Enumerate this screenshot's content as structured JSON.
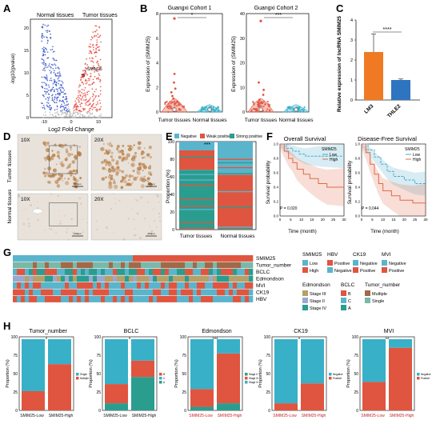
{
  "colors": {
    "up": "#e8453c",
    "down": "#3b57c9",
    "ns": "#b8b8b8",
    "tumor": "#e0553f",
    "normal": "#37b0c8",
    "orange": "#f07a23",
    "blue": "#2f74c0",
    "neg": "#5ab4cc",
    "weak": "#e0553f",
    "strong": "#2a9d8f",
    "low": "#5ab4cc",
    "high": "#e0553f",
    "posA": "#e0553f",
    "negA": "#5ab4cc",
    "s3": "#b5a06a",
    "s2": "#9aa9cc",
    "s4": "#2a9d8f",
    "bB": "#e0553f",
    "bC": "#5ab4cc",
    "bA": "#2a9d8f",
    "multi": "#a06a4a",
    "single": "#7ab8a8",
    "km_low": "#4aa8c8",
    "km_high": "#e06a4a",
    "ihc_bg": "#e8e2da",
    "ihc_stain": "#b5763a"
  },
  "panels": {
    "A": {
      "letter": "A",
      "left_label": "Normal tissues",
      "right_label": "Tumor tissues",
      "xlabel": "Log2 Fold Change",
      "ylabel": "-log10(pvalue)",
      "gene": "SMIM25",
      "xticks": [
        "-10",
        "0",
        "10"
      ],
      "yticks": [
        "0",
        "5",
        "10",
        "15",
        "20"
      ],
      "chart_data": {
        "type": "scatter",
        "title": "",
        "xlabel": "Log2 Fold Change",
        "ylabel": "-log10(pvalue)",
        "xlim": [
          -15,
          15
        ],
        "ylim": [
          0,
          22
        ],
        "groups": [
          "Normal tissues (down)",
          "Tumor tissues (up)",
          "not significant"
        ],
        "highlight": {
          "label": "SMIM25",
          "x": 4.5,
          "y": 9.5
        }
      }
    },
    "B": {
      "letter": "B",
      "cohort1": {
        "title": "Guangxi Cohort 1",
        "ylabel": "Expression of (SMIM25)",
        "sig": "*",
        "yticks": [
          "0",
          "2",
          "4",
          "6",
          "8"
        ],
        "groups": [
          "Tumor tissues",
          "Normal tissues"
        ]
      },
      "cohort2": {
        "title": "Guangxi Cohort 2",
        "ylabel": "Expression of (SMIM25)",
        "sig": "***",
        "yticks": [
          "0",
          "10",
          "20",
          "30",
          "40"
        ],
        "groups": [
          "Tumor tissues",
          "Normal tissues"
        ]
      }
    },
    "C": {
      "letter": "C",
      "ylabel": "Relative expression of lncRNA SMIM25",
      "sig": "****",
      "yticks": [
        "0",
        "1",
        "2",
        "3",
        "4"
      ],
      "chart_data": {
        "type": "bar",
        "categories": [
          "LM3",
          "THLE2"
        ],
        "values": [
          2.4,
          1.0
        ],
        "errors": [
          0.9,
          0.05
        ],
        "ylim": [
          0,
          4
        ]
      }
    },
    "D": {
      "letter": "D",
      "row_labels": [
        "Tumor tissues",
        "Normal tissues"
      ],
      "mags": [
        "10X",
        "20X",
        "10X",
        "20X"
      ],
      "scalebar": "200μm"
    },
    "E": {
      "letter": "E",
      "legend": [
        "Negative",
        "Weak positive",
        "Strong positive"
      ],
      "ylabel": "Proportion (%)",
      "sig": "***",
      "yticks": [
        "0",
        "20",
        "40",
        "60",
        "80",
        "100"
      ],
      "chart_data": {
        "type": "bar",
        "stacked": true,
        "categories": [
          "Tumor tissues",
          "Normal tissues"
        ],
        "series": [
          {
            "name": "Strong positive",
            "values": [
              68,
              2
            ]
          },
          {
            "name": "Weak positive",
            "values": [
              22,
              60
            ]
          },
          {
            "name": "Negative",
            "values": [
              10,
              38
            ]
          }
        ],
        "ylim": [
          0,
          100
        ]
      }
    },
    "F": {
      "letter": "F",
      "os": {
        "title": "Overall Survival",
        "ylabel": "Survival probability",
        "xlabel": "Time (month)",
        "pval": "P = 0.020",
        "legend_title": "SMIM25",
        "legend": [
          "Low",
          "High"
        ],
        "xticks": [
          "0",
          "5",
          "10",
          "15",
          "20",
          "25",
          "30"
        ],
        "yticks": [
          "0.0",
          "0.2",
          "0.4",
          "0.6",
          "0.8",
          "1.0"
        ],
        "chart_data": {
          "type": "line",
          "series": [
            {
              "name": "Low",
              "x": [
                0,
                3,
                6,
                9,
                12,
                16,
                20,
                30
              ],
              "y": [
                1.0,
                0.94,
                0.9,
                0.86,
                0.83,
                0.83,
                0.83,
                0.83
              ]
            },
            {
              "name": "High",
              "x": [
                0,
                2,
                4,
                6,
                8,
                11,
                14,
                18,
                22,
                30
              ],
              "y": [
                1.0,
                0.9,
                0.8,
                0.74,
                0.65,
                0.58,
                0.52,
                0.45,
                0.4,
                0.4
              ]
            }
          ],
          "xlim": [
            0,
            30
          ],
          "ylim": [
            0,
            1
          ]
        }
      },
      "dfs": {
        "title": "Disease-Free Survival",
        "ylabel": "Survival probability",
        "xlabel": "Time (month)",
        "pval": "P = 0.044",
        "legend_title": "SMIM25",
        "legend": [
          "Low",
          "High"
        ],
        "xticks": [
          "0",
          "5",
          "10",
          "15",
          "20",
          "25",
          "30"
        ],
        "yticks": [
          "0.0",
          "0.2",
          "0.4",
          "0.6",
          "0.8",
          "1.0"
        ],
        "chart_data": {
          "type": "line",
          "series": [
            {
              "name": "Low",
              "x": [
                0,
                3,
                6,
                9,
                12,
                15,
                20,
                25,
                30
              ],
              "y": [
                1.0,
                0.92,
                0.82,
                0.72,
                0.62,
                0.55,
                0.5,
                0.45,
                0.45
              ]
            },
            {
              "name": "High",
              "x": [
                0,
                2,
                4,
                6,
                8,
                10,
                14,
                18,
                24,
                30
              ],
              "y": [
                1.0,
                0.88,
                0.72,
                0.58,
                0.45,
                0.35,
                0.28,
                0.22,
                0.18,
                0.18
              ]
            }
          ],
          "xlim": [
            0,
            30
          ],
          "ylim": [
            0,
            1
          ]
        }
      }
    },
    "G": {
      "letter": "G",
      "rows": [
        "SMIM25",
        "Tumor_number",
        "BCLC",
        "Edmondson",
        "MVI",
        "CK19",
        "HBV"
      ],
      "legend": {
        "SMIM25": {
          "title": "SMIM25",
          "items": [
            "Low",
            "High"
          ]
        },
        "HBV": {
          "title": "HBV",
          "items": [
            "Positive",
            "Negative"
          ]
        },
        "CK19": {
          "title": "CK19",
          "items": [
            "Negative",
            "Positive"
          ]
        },
        "MVI": {
          "title": "MVI",
          "items": [
            "Negative",
            "Positive"
          ]
        },
        "Edmondson": {
          "title": "Edmondson",
          "items": [
            "Stage III",
            "Stage II",
            "Stage IV"
          ]
        },
        "BCLC": {
          "title": "BCLC",
          "items": [
            "B",
            "C",
            "A"
          ]
        },
        "Tumor_number": {
          "title": "Tumor_number",
          "items": [
            "Multiple",
            "Single"
          ]
        }
      }
    },
    "H": {
      "letter": "H",
      "ylabel": "Proportion (%)",
      "xcats": [
        "SMIM25-Low",
        "SMIM25-High"
      ],
      "yticks": [
        "0",
        "25",
        "50",
        "75",
        "100"
      ],
      "charts": [
        {
          "title": "Tumor_number",
          "sig": "*",
          "legend": [
            "Single",
            "Multiple"
          ],
          "series": [
            {
              "name": "Multiple",
              "values": [
                27,
                65
              ]
            },
            {
              "name": "Single",
              "values": [
                73,
                35
              ]
            }
          ]
        },
        {
          "title": "BCLC",
          "sig": "*",
          "legend": [
            "B",
            "C",
            "A"
          ],
          "series": [
            {
              "name": "A",
              "values": [
                10,
                47
              ]
            },
            {
              "name": "B",
              "values": [
                27,
                23
              ]
            },
            {
              "name": "C",
              "values": [
                63,
                30
              ]
            }
          ]
        },
        {
          "title": "Edmondson",
          "sig": "***",
          "legend": [
            "Stage II",
            "Stage III",
            "Stage IV"
          ],
          "series": [
            {
              "name": "Stage II",
              "values": [
                5,
                10
              ]
            },
            {
              "name": "Stage III",
              "values": [
                25,
                70
              ]
            },
            {
              "name": "Stage IV",
              "values": [
                70,
                20
              ]
            }
          ]
        },
        {
          "title": "CK19",
          "sig": "*",
          "legend": [
            "Negative",
            "Positive"
          ],
          "series": [
            {
              "name": "Positive",
              "values": [
                10,
                38
              ]
            },
            {
              "name": "Negative",
              "values": [
                90,
                62
              ]
            }
          ]
        },
        {
          "title": "MVI",
          "sig": "**",
          "legend": [
            "Negative",
            "Positive"
          ],
          "series": [
            {
              "name": "Positive",
              "values": [
                40,
                88
              ]
            },
            {
              "name": "Negative",
              "values": [
                60,
                12
              ]
            }
          ]
        }
      ]
    }
  }
}
